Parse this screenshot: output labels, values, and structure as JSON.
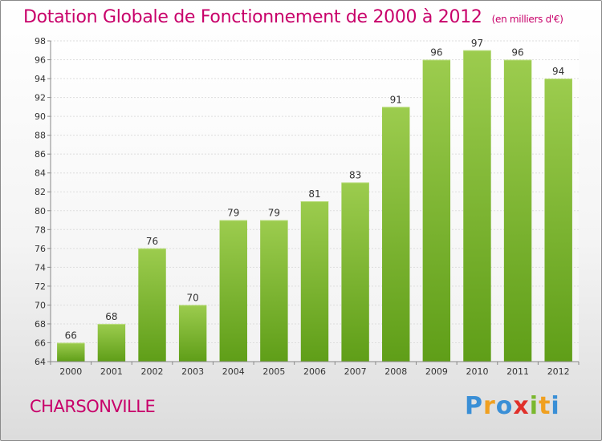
{
  "header": {
    "title": "Dotation Globale de Fonctionnement de 2000 à 2012",
    "subtitle": "(en milliers d'€)"
  },
  "footer": {
    "commune": "CHARSONVILLE",
    "logo_letters": [
      "P",
      "r",
      "o",
      "x",
      "i",
      "t",
      "i"
    ],
    "logo_colors": [
      "#3a8fd6",
      "#f0a020",
      "#3a8fd6",
      "#e0302a",
      "#7ab82e",
      "#f0a020",
      "#3a8fd6"
    ]
  },
  "chart_data": {
    "type": "bar",
    "title": "Dotation Globale de Fonctionnement de 2000 à 2012",
    "subtitle": "(en milliers d'€)",
    "xlabel": "",
    "ylabel": "",
    "categories": [
      "2000",
      "2001",
      "2002",
      "2003",
      "2004",
      "2005",
      "2006",
      "2007",
      "2008",
      "2009",
      "2010",
      "2011",
      "2012"
    ],
    "values": [
      66,
      68,
      76,
      70,
      79,
      79,
      81,
      83,
      91,
      96,
      97,
      96,
      94
    ],
    "ylim": [
      64,
      98
    ],
    "yticks": [
      64,
      66,
      68,
      70,
      72,
      74,
      76,
      78,
      80,
      82,
      84,
      86,
      88,
      90,
      92,
      94,
      96,
      98
    ],
    "grid": true,
    "legend": "none",
    "bar_color_top": "#9ccc4e",
    "bar_color_bottom": "#5f9e18"
  }
}
